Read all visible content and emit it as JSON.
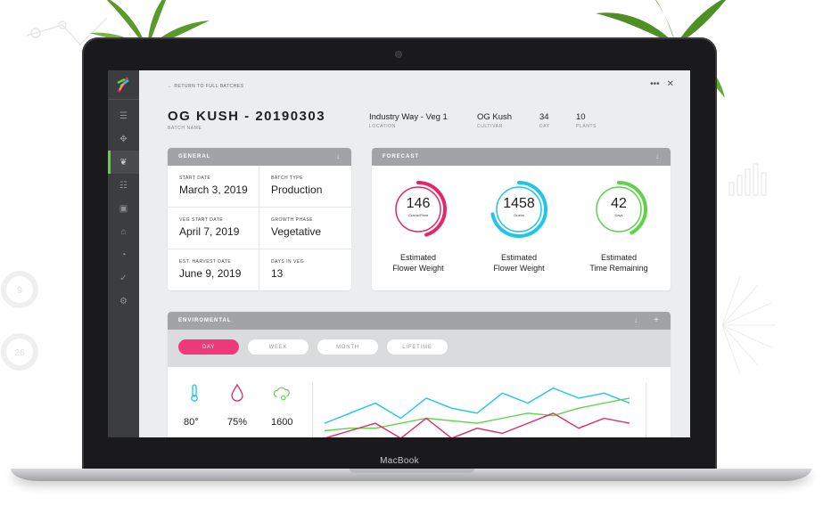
{
  "laptop": {
    "brand_label": "MacBook"
  },
  "nav": {
    "back_link": "← RETURN TO FULL BATCHES",
    "more_icon": "more-horizontal-icon",
    "close_icon": "close-icon"
  },
  "sidebar": {
    "items": [
      {
        "icon": "menu-icon",
        "glyph": "☰"
      },
      {
        "icon": "compass-icon",
        "glyph": "✥"
      },
      {
        "icon": "leaf-icon",
        "glyph": "❦",
        "active": true
      },
      {
        "icon": "list-icon",
        "glyph": "☷"
      },
      {
        "icon": "box-icon",
        "glyph": "▣"
      },
      {
        "icon": "home-icon",
        "glyph": "⌂"
      },
      {
        "icon": "timer-icon",
        "glyph": "◔"
      },
      {
        "icon": "check-circle-icon",
        "glyph": "✓"
      },
      {
        "icon": "gear-icon",
        "glyph": "⚙"
      }
    ]
  },
  "header": {
    "batch_title": "OG KUSH - 20190303",
    "batch_caption": "BATCH NAME",
    "location": {
      "value": "Industry Way - Veg 1",
      "caption": "LOCATION"
    },
    "cultivar": {
      "value": "OG Kush",
      "caption": "CULTIVAR"
    },
    "day": {
      "value": "34",
      "caption": "DAY"
    },
    "plants": {
      "value": "10",
      "caption": "PLANTS"
    }
  },
  "general": {
    "title": "GENERAL",
    "fields": [
      {
        "caption": "START DATE",
        "value": "March 3, 2019"
      },
      {
        "caption": "BATCH TYPE",
        "value": "Production"
      },
      {
        "caption": "VEG START DATE",
        "value": "April 7, 2019"
      },
      {
        "caption": "GROWTH PHASE",
        "value": "Vegetative"
      },
      {
        "caption": "EST. HARVEST DATE",
        "value": "June 9, 2019"
      },
      {
        "caption": "DAYS IN VEG",
        "value": "13"
      }
    ]
  },
  "forecast": {
    "title": "FORECAST",
    "gauges": [
      {
        "value": "146",
        "unit": "Grams/Plant",
        "label_line1": "Estimated",
        "label_line2": "Flower Weight",
        "color": "#e0286b",
        "fraction": 0.45
      },
      {
        "value": "1458",
        "unit": "Grams",
        "label_line1": "Estimated",
        "label_line2": "Flower Weight",
        "color": "#1fc6e6",
        "fraction": 0.72
      },
      {
        "value": "42",
        "unit": "Days",
        "label_line1": "Estimated",
        "label_line2": "Time Remaining",
        "color": "#5fd14a",
        "fraction": 0.42
      }
    ]
  },
  "environmental": {
    "title": "ENVIROMENTAL",
    "tabs": [
      {
        "label": "DAY",
        "active": true
      },
      {
        "label": "WEEK",
        "active": false
      },
      {
        "label": "MONTH",
        "active": false
      },
      {
        "label": "LIFETIME",
        "active": false
      }
    ],
    "readings": [
      {
        "icon": "thermometer-icon",
        "value": "80°",
        "color": "#1fc6e6"
      },
      {
        "icon": "humidity-drop-icon",
        "value": "75%",
        "color": "#e0286b"
      },
      {
        "icon": "co2-cloud-icon",
        "value": "1600",
        "color": "#5fd14a"
      }
    ],
    "chart_data": {
      "type": "line",
      "series": [
        {
          "color": "#1fc6e6",
          "values": [
            2,
            4,
            6,
            3,
            7,
            5,
            4,
            8,
            6,
            9,
            7,
            8,
            6
          ]
        },
        {
          "color": "#5fd14a",
          "values": [
            0.5,
            1,
            1,
            2,
            3,
            2.5,
            2,
            3,
            4,
            3.5,
            5,
            6,
            7
          ]
        },
        {
          "color": "#e0286b",
          "values": [
            -1,
            0.5,
            2,
            -1,
            3,
            -1,
            1,
            0,
            2,
            4,
            1,
            3,
            2
          ]
        }
      ]
    }
  }
}
